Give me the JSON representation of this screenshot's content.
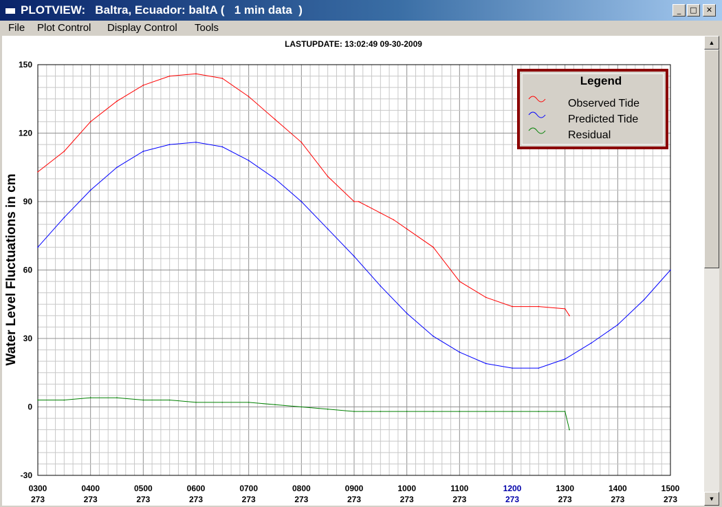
{
  "window": {
    "title": "PLOTVIEW:   Baltra, Ecuador: baltA (   1 min data  )",
    "buttons": {
      "minimize": "_",
      "maximize": "□",
      "close": "✕"
    }
  },
  "menu": [
    "File",
    "Plot Control",
    "Display Control",
    "Tools"
  ],
  "chart_data": {
    "type": "line",
    "title": "LASTUPDATE: 13:02:49  09-30-2009",
    "ylabel": "Water Level Fluctuations in cm",
    "xlabel": "",
    "ylim": [
      -30,
      150
    ],
    "xlim": [
      300,
      1500
    ],
    "y_ticks": [
      -30,
      0,
      30,
      60,
      90,
      120,
      150
    ],
    "x_ticks": [
      "0300",
      "0400",
      "0500",
      "0600",
      "0700",
      "0800",
      "0900",
      "1000",
      "1100",
      "1200",
      "1300",
      "1400",
      "1500"
    ],
    "x_ticks_day": [
      "273",
      "273",
      "273",
      "273",
      "273",
      "273",
      "273",
      "273",
      "273",
      "273",
      "273",
      "273",
      "273"
    ],
    "highlight_tick": "1200",
    "grid": true,
    "legend": {
      "title": "Legend",
      "placement": "top-right"
    },
    "series": [
      {
        "name": "Observed Tide",
        "color": "#ff0000",
        "x": [
          300,
          330,
          400,
          430,
          500,
          530,
          600,
          630,
          700,
          730,
          800,
          830,
          900,
          905,
          915,
          930,
          945,
          1000,
          1030,
          1100,
          1130,
          1200,
          1230,
          1300,
          1305
        ],
        "y": [
          103,
          112,
          125,
          134,
          141,
          145,
          146,
          144,
          136,
          126,
          116,
          101,
          90,
          90,
          88,
          85,
          82,
          78,
          70,
          55,
          48,
          44,
          44,
          43,
          40
        ]
      },
      {
        "name": "Predicted Tide",
        "color": "#0000ff",
        "x": [
          300,
          330,
          400,
          430,
          500,
          530,
          600,
          630,
          700,
          730,
          800,
          830,
          900,
          930,
          1000,
          1030,
          1100,
          1130,
          1200,
          1230,
          1300,
          1330,
          1400,
          1430,
          1500
        ],
        "y": [
          70,
          83,
          95,
          105,
          112,
          115,
          116,
          114,
          108,
          100,
          90,
          78,
          66,
          53,
          41,
          31,
          24,
          19,
          17,
          17,
          21,
          28,
          36,
          47,
          60
        ]
      },
      {
        "name": "Residual",
        "color": "#008000",
        "x": [
          300,
          330,
          400,
          430,
          500,
          530,
          600,
          630,
          700,
          730,
          800,
          830,
          900,
          930,
          1000,
          1030,
          1100,
          1130,
          1200,
          1230,
          1300,
          1305
        ],
        "y": [
          3,
          3,
          4,
          4,
          3,
          3,
          2,
          2,
          2,
          1,
          0,
          -1,
          -2,
          -2,
          -2,
          -2,
          -2,
          -2,
          -2,
          -2,
          -2,
          -10
        ]
      }
    ]
  }
}
